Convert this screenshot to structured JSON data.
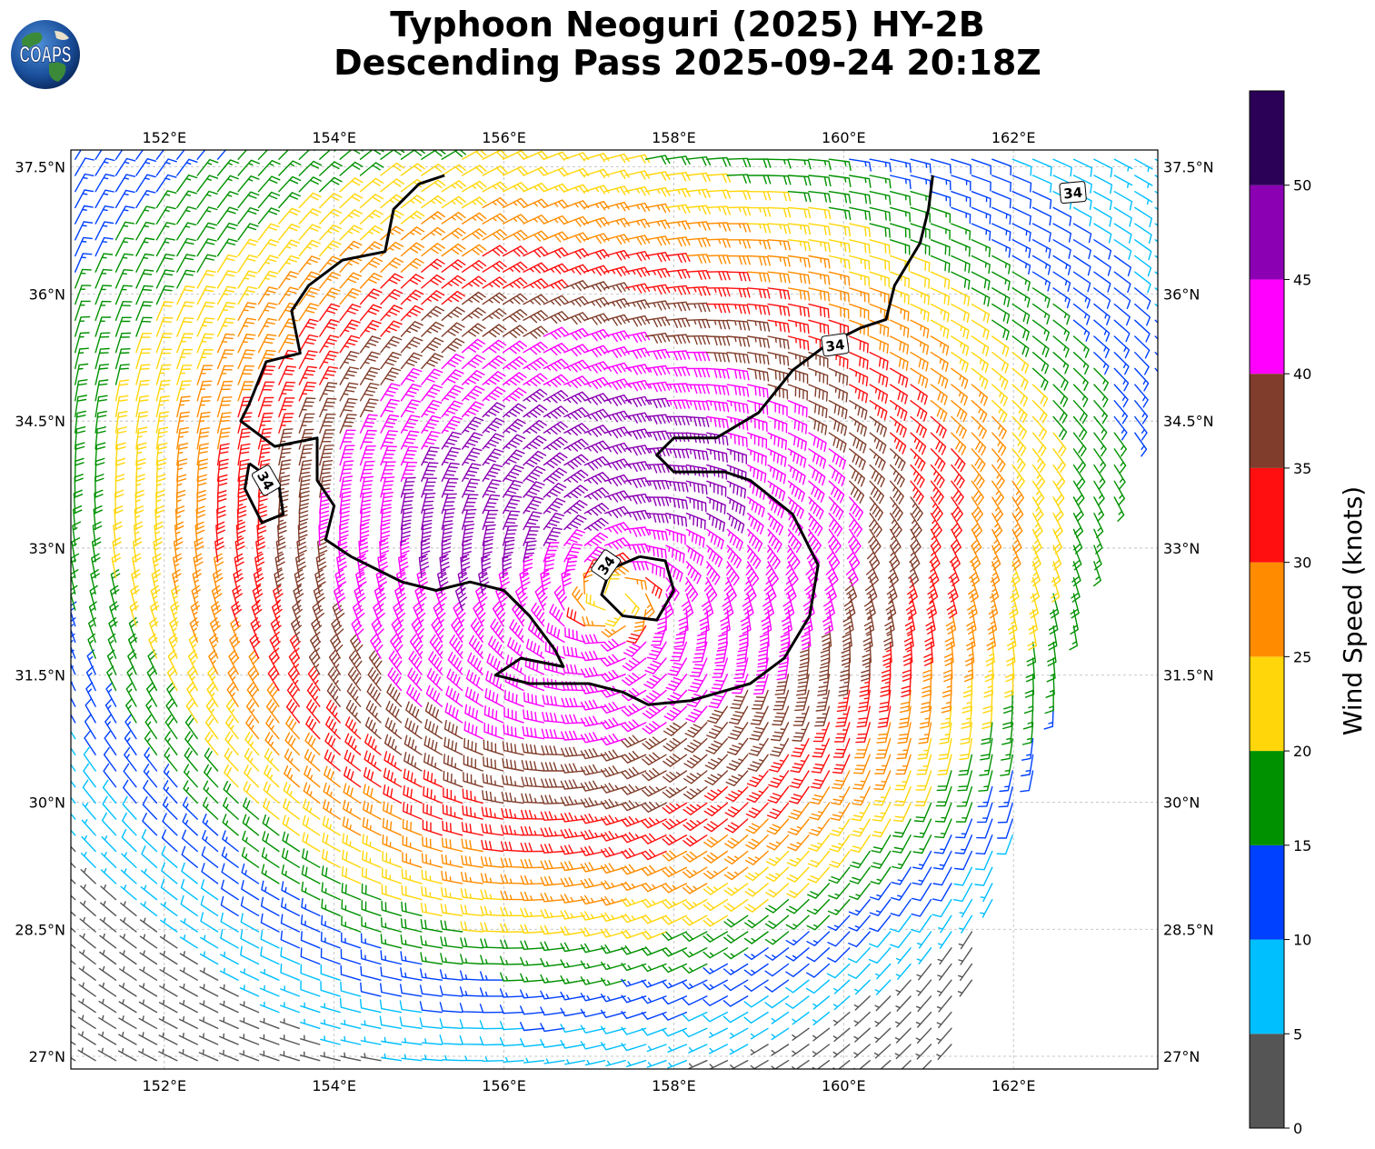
{
  "title": {
    "line1": "Typhoon Neoguri (2025) HY-2B",
    "line2": "Descending Pass 2025-09-24 20:18Z"
  },
  "logo": {
    "text": "COAPS",
    "icon": "globe-icon"
  },
  "map": {
    "lon_range": [
      150.9,
      163.7
    ],
    "lat_range": [
      26.85,
      37.7
    ],
    "lon_ticks": [
      {
        "value": 152,
        "label": "152°E"
      },
      {
        "value": 154,
        "label": "154°E"
      },
      {
        "value": 156,
        "label": "156°E"
      },
      {
        "value": 158,
        "label": "158°E"
      },
      {
        "value": 160,
        "label": "160°E"
      },
      {
        "value": 162,
        "label": "162°E"
      }
    ],
    "lat_ticks": [
      {
        "value": 37.5,
        "label": "37.5°N"
      },
      {
        "value": 36,
        "label": "36°N"
      },
      {
        "value": 34.5,
        "label": "34.5°N"
      },
      {
        "value": 33,
        "label": "33°N"
      },
      {
        "value": 31.5,
        "label": "31.5°N"
      },
      {
        "value": 30,
        "label": "30°N"
      },
      {
        "value": 28.5,
        "label": "28.5°N"
      },
      {
        "value": 27,
        "label": "27°N"
      }
    ],
    "grid": true,
    "contour_labels": [
      {
        "text": "34",
        "lon": 153.2,
        "lat": 33.8,
        "rotate": 60
      },
      {
        "text": "34",
        "lon": 157.2,
        "lat": 32.8,
        "rotate": -55
      },
      {
        "text": "34",
        "lon": 159.9,
        "lat": 35.4,
        "rotate": -8
      },
      {
        "text": "34",
        "lon": 162.7,
        "lat": 37.2,
        "rotate": -5
      }
    ],
    "storm_center": {
      "lon": 157.3,
      "lat": 32.4
    }
  },
  "colorbar": {
    "label": "Wind Speed (knots)",
    "ticks": [
      "0",
      "5",
      "10",
      "15",
      "20",
      "25",
      "30",
      "35",
      "40",
      "45",
      "50"
    ],
    "bins": [
      {
        "from": 0,
        "to": 5,
        "color": "#555555"
      },
      {
        "from": 5,
        "to": 10,
        "color": "#00bfff"
      },
      {
        "from": 10,
        "to": 15,
        "color": "#0040ff"
      },
      {
        "from": 15,
        "to": 20,
        "color": "#009100"
      },
      {
        "from": 20,
        "to": 25,
        "color": "#ffd60a"
      },
      {
        "from": 25,
        "to": 30,
        "color": "#ff8c00"
      },
      {
        "from": 30,
        "to": 35,
        "color": "#ff0f0f"
      },
      {
        "from": 35,
        "to": 40,
        "color": "#803d2b"
      },
      {
        "from": 40,
        "to": 45,
        "color": "#ff00ff"
      },
      {
        "from": 45,
        "to": 50,
        "color": "#8b00b3"
      },
      {
        "from": 50,
        "to": 55,
        "color": "#2b0057"
      }
    ]
  }
}
